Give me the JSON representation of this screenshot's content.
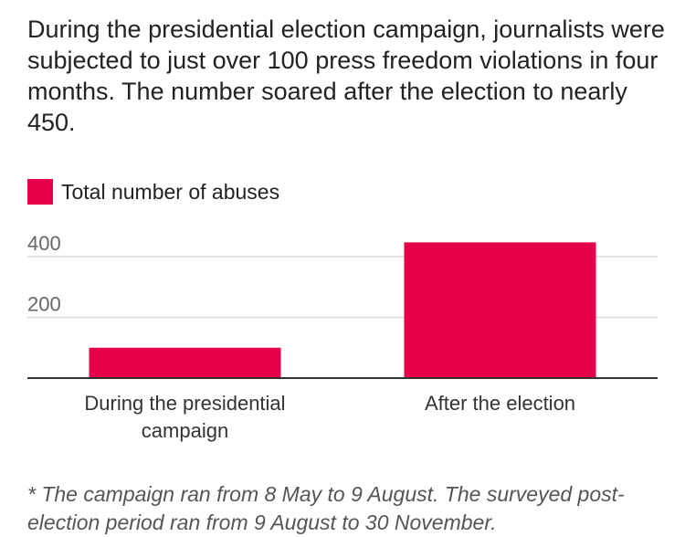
{
  "title": "During the presidential election campaign, journalists were subjected to just over 100 press freedom violations in four months. The number soared after the election to nearly 450.",
  "footnote": "* The campaign ran from 8 May to 9 August. The surveyed post-election period ran from 9 August to 30 November.",
  "colors": {
    "bar": "#e60049",
    "grid": "#d9d9d9",
    "axis": "#333333"
  },
  "chart_data": {
    "type": "bar",
    "categories": [
      [
        "During the presidential",
        "campaign"
      ],
      [
        "After the election"
      ]
    ],
    "series": [
      {
        "name": "Total number of abuses",
        "values": [
          100,
          447
        ]
      }
    ],
    "yticks": [
      200,
      400
    ],
    "ylim": [
      0,
      450
    ],
    "grid": true,
    "legend_position": "top-left"
  }
}
